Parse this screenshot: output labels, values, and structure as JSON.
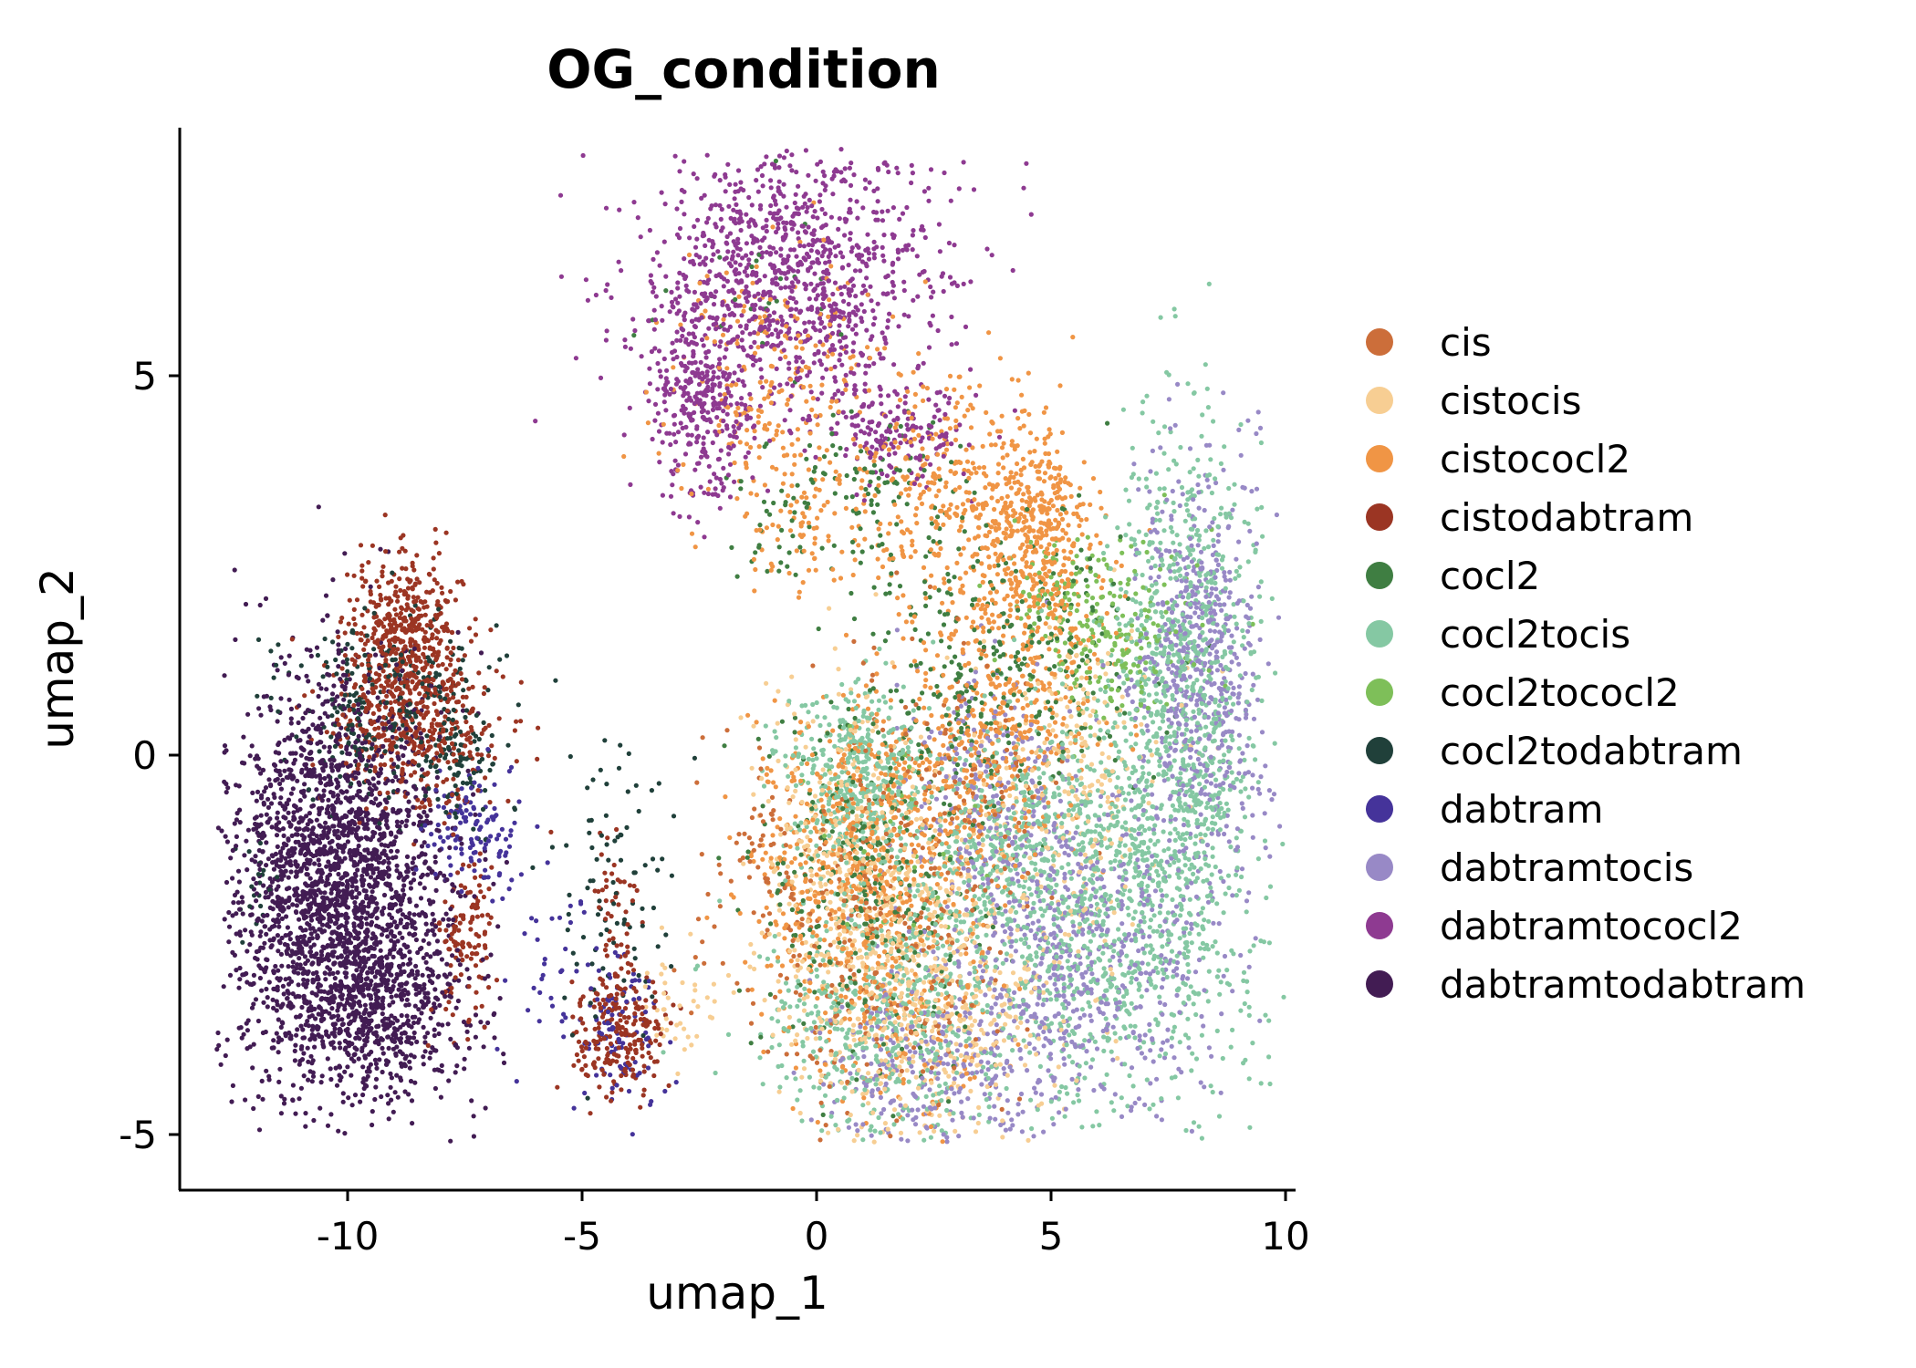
{
  "chart_data": {
    "type": "scatter",
    "title": "OG_condition",
    "xlabel": "umap_1",
    "ylabel": "umap_2",
    "xlim": [
      -13.6,
      10.3
    ],
    "ylim": [
      -5.7,
      8.3
    ],
    "xticks": [
      -10,
      -5,
      0,
      5,
      10
    ],
    "xtick_labels": [
      "-10",
      "-5",
      "0",
      "5",
      "10"
    ],
    "yticks": [
      -5,
      0,
      5
    ],
    "ytick_labels": [
      "-5",
      "0",
      "5"
    ],
    "grid": false,
    "legend_position": "right",
    "series": [
      {
        "name": "cis",
        "color": "#CC6E3A",
        "clusters": [
          {
            "x": 1.2,
            "y": -2.3,
            "sx": 1.5,
            "sy": 1.3,
            "n": 320
          },
          {
            "x": 3.0,
            "y": -0.4,
            "sx": 1.2,
            "sy": 1.0,
            "n": 120
          },
          {
            "x": -1.2,
            "y": -1.0,
            "sx": 0.5,
            "sy": 0.6,
            "n": 40
          }
        ]
      },
      {
        "name": "cistocis",
        "color": "#F7CE93",
        "clusters": [
          {
            "x": 2.3,
            "y": -3.1,
            "sx": 1.4,
            "sy": 1.0,
            "n": 650
          },
          {
            "x": 0.6,
            "y": -1.2,
            "sx": 1.0,
            "sy": 1.0,
            "n": 300
          },
          {
            "x": 5.5,
            "y": -0.3,
            "sx": 1.0,
            "sy": 1.0,
            "n": 250
          },
          {
            "x": -3.0,
            "y": -3.3,
            "sx": 0.5,
            "sy": 0.4,
            "n": 40
          }
        ]
      },
      {
        "name": "cistococl2",
        "color": "#F09545",
        "clusters": [
          {
            "x": 4.6,
            "y": 2.8,
            "sx": 0.6,
            "sy": 0.8,
            "n": 380
          },
          {
            "x": 3.0,
            "y": 3.3,
            "sx": 1.3,
            "sy": 0.8,
            "n": 380
          },
          {
            "x": 4.2,
            "y": 0.7,
            "sx": 1.0,
            "sy": 0.9,
            "n": 350
          },
          {
            "x": 2.0,
            "y": -0.6,
            "sx": 1.1,
            "sy": 0.7,
            "n": 300
          },
          {
            "x": 0.3,
            "y": -1.3,
            "sx": 0.9,
            "sy": 0.9,
            "n": 250
          },
          {
            "x": 1.6,
            "y": -2.7,
            "sx": 1.2,
            "sy": 1.0,
            "n": 300
          },
          {
            "x": -0.6,
            "y": 4.9,
            "sx": 1.3,
            "sy": 0.8,
            "n": 250
          },
          {
            "x": -0.6,
            "y": 3.0,
            "sx": 0.7,
            "sy": 0.4,
            "n": 60
          }
        ]
      },
      {
        "name": "cistodabtram",
        "color": "#9B3523",
        "clusters": [
          {
            "x": -8.8,
            "y": 1.6,
            "sx": 0.6,
            "sy": 0.5,
            "n": 450
          },
          {
            "x": -8.5,
            "y": 0.3,
            "sx": 0.9,
            "sy": 0.5,
            "n": 400
          },
          {
            "x": -7.5,
            "y": -2.4,
            "sx": 0.3,
            "sy": 0.6,
            "n": 120
          },
          {
            "x": -4.2,
            "y": -3.7,
            "sx": 0.5,
            "sy": 0.4,
            "n": 220
          },
          {
            "x": -4.3,
            "y": -2.0,
            "sx": 0.2,
            "sy": 0.5,
            "n": 50
          }
        ]
      },
      {
        "name": "cocl2",
        "color": "#3F7E42",
        "clusters": [
          {
            "x": 1.2,
            "y": -1.6,
            "sx": 1.3,
            "sy": 1.2,
            "n": 320
          },
          {
            "x": 3.8,
            "y": 1.2,
            "sx": 1.6,
            "sy": 0.9,
            "n": 300
          },
          {
            "x": 1.0,
            "y": 3.5,
            "sx": 1.0,
            "sy": 0.5,
            "n": 100
          },
          {
            "x": -0.8,
            "y": 2.9,
            "sx": 0.4,
            "sy": 0.4,
            "n": 30
          },
          {
            "x": -1.2,
            "y": 6.4,
            "sx": 1.3,
            "sy": 0.6,
            "n": 25
          }
        ]
      },
      {
        "name": "cocl2tocis",
        "color": "#85C8A3",
        "clusters": [
          {
            "x": 7.8,
            "y": 1.0,
            "sx": 0.8,
            "sy": 1.6,
            "n": 800
          },
          {
            "x": 6.5,
            "y": -2.0,
            "sx": 1.4,
            "sy": 1.3,
            "n": 850
          },
          {
            "x": 1.3,
            "y": -3.6,
            "sx": 1.3,
            "sy": 0.9,
            "n": 500
          },
          {
            "x": 0.8,
            "y": -0.3,
            "sx": 0.8,
            "sy": 0.6,
            "n": 400
          },
          {
            "x": 4.0,
            "y": -1.5,
            "sx": 1.2,
            "sy": 1.0,
            "n": 500
          }
        ]
      },
      {
        "name": "cocl2tococl2",
        "color": "#7EBF59",
        "clusters": [
          {
            "x": 6.3,
            "y": 1.6,
            "sx": 0.8,
            "sy": 0.6,
            "n": 200
          },
          {
            "x": 5.0,
            "y": 2.2,
            "sx": 0.5,
            "sy": 0.4,
            "n": 60
          },
          {
            "x": 1.5,
            "y": -1.2,
            "sx": 1.0,
            "sy": 1.0,
            "n": 40
          }
        ]
      },
      {
        "name": "cocl2todabtram",
        "color": "#20403A",
        "clusters": [
          {
            "x": -9.2,
            "y": 0.7,
            "sx": 1.1,
            "sy": 0.6,
            "n": 250
          },
          {
            "x": -7.6,
            "y": -0.1,
            "sx": 0.4,
            "sy": 0.4,
            "n": 70
          },
          {
            "x": -4.4,
            "y": -2.0,
            "sx": 0.7,
            "sy": 0.9,
            "n": 90
          },
          {
            "x": -12.0,
            "y": -1.8,
            "sx": 0.2,
            "sy": 0.4,
            "n": 20
          }
        ]
      },
      {
        "name": "dabtram",
        "color": "#45339A",
        "clusters": [
          {
            "x": -7.3,
            "y": -1.0,
            "sx": 0.5,
            "sy": 0.4,
            "n": 120
          },
          {
            "x": -4.2,
            "y": -3.7,
            "sx": 0.4,
            "sy": 0.5,
            "n": 100
          },
          {
            "x": -5.8,
            "y": -2.7,
            "sx": 0.6,
            "sy": 0.7,
            "n": 40
          }
        ]
      },
      {
        "name": "dabtramtocis",
        "color": "#9889C6",
        "clusters": [
          {
            "x": 8.2,
            "y": 1.0,
            "sx": 0.7,
            "sy": 1.4,
            "n": 650
          },
          {
            "x": 5.5,
            "y": -2.8,
            "sx": 1.4,
            "sy": 1.1,
            "n": 650
          },
          {
            "x": 2.2,
            "y": -4.2,
            "sx": 1.2,
            "sy": 0.6,
            "n": 250
          },
          {
            "x": 3.8,
            "y": -0.5,
            "sx": 1.0,
            "sy": 0.8,
            "n": 250
          }
        ]
      },
      {
        "name": "dabtramtococl2",
        "color": "#8E3A91",
        "clusters": [
          {
            "x": -0.6,
            "y": 6.3,
            "sx": 1.6,
            "sy": 0.9,
            "n": 1100
          },
          {
            "x": -2.5,
            "y": 4.6,
            "sx": 0.5,
            "sy": 0.7,
            "n": 300
          },
          {
            "x": 1.6,
            "y": 4.2,
            "sx": 0.8,
            "sy": 0.3,
            "n": 150
          }
        ]
      },
      {
        "name": "dabtramtodabtram",
        "color": "#421C53",
        "clusters": [
          {
            "x": -10.3,
            "y": -1.8,
            "sx": 1.1,
            "sy": 1.4,
            "n": 2400
          },
          {
            "x": -9.0,
            "y": -3.3,
            "sx": 0.9,
            "sy": 0.6,
            "n": 400
          }
        ]
      }
    ]
  }
}
